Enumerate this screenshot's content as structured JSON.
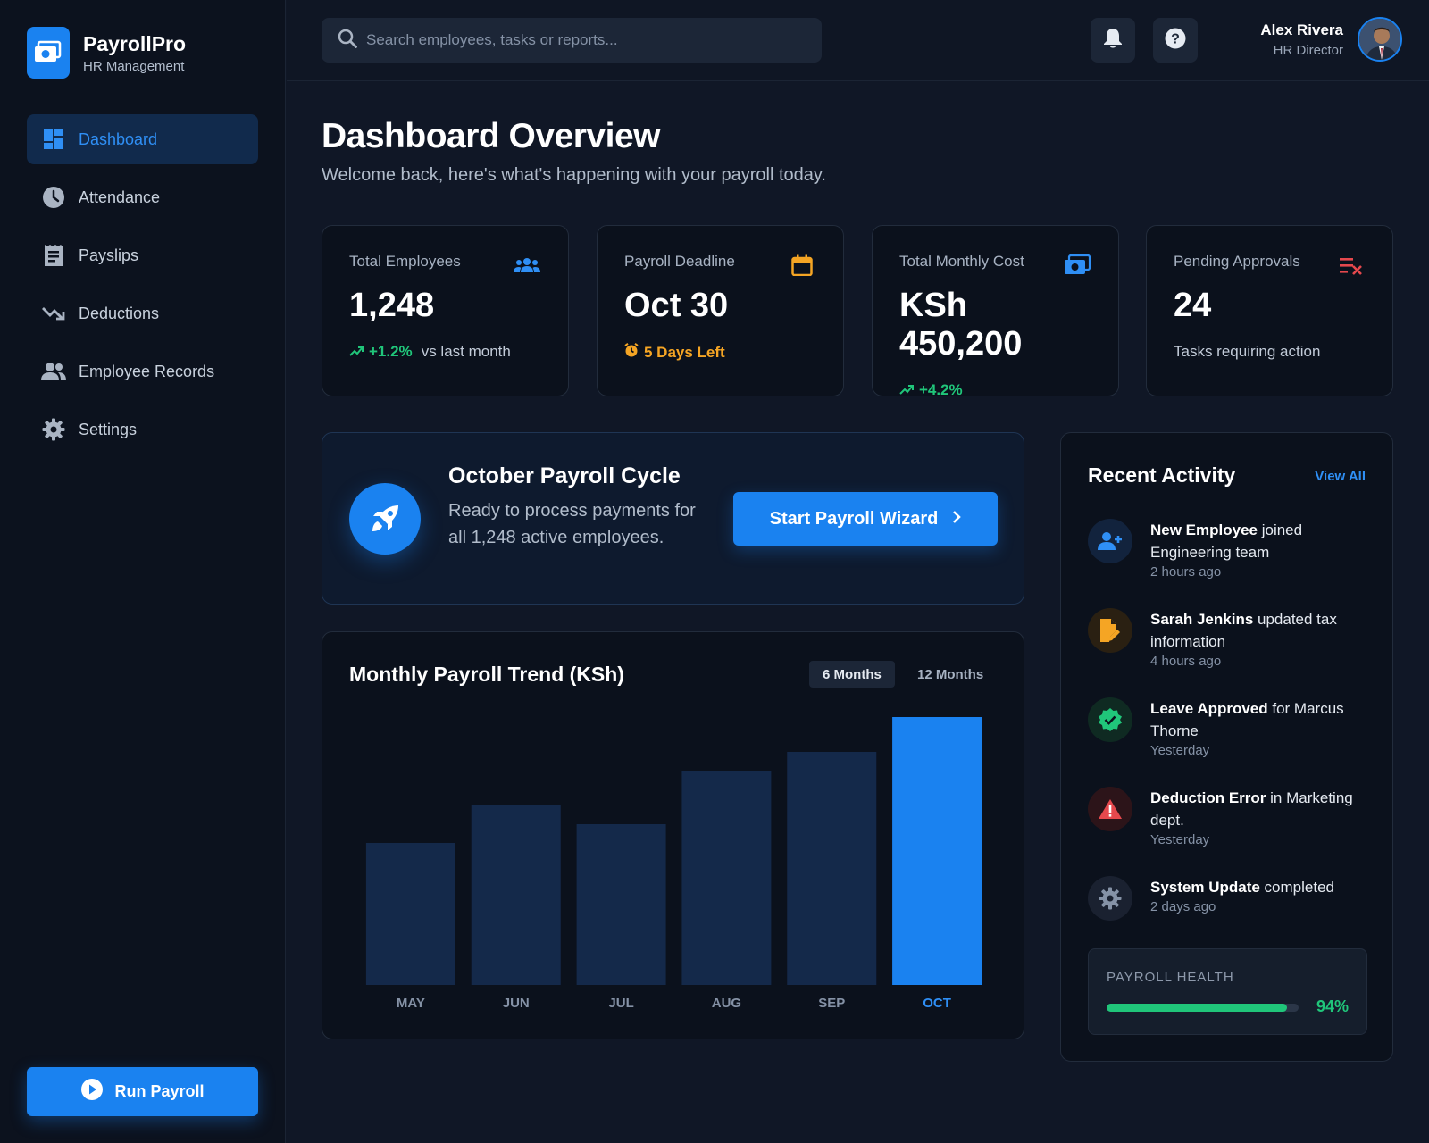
{
  "brand": {
    "name": "PayrollPro",
    "subtitle": "HR Management",
    "icon": "money-icon"
  },
  "sidebar": {
    "items": [
      {
        "label": "Dashboard",
        "icon": "dashboard-icon",
        "active": true
      },
      {
        "label": "Attendance",
        "icon": "clock-icon",
        "active": false
      },
      {
        "label": "Payslips",
        "icon": "receipt-icon",
        "active": false
      },
      {
        "label": "Deductions",
        "icon": "trending-down-icon",
        "active": false
      },
      {
        "label": "Employee Records",
        "icon": "people-icon",
        "active": false
      },
      {
        "label": "Settings",
        "icon": "gear-icon",
        "active": false
      }
    ],
    "run_payroll_label": "Run Payroll"
  },
  "header": {
    "search_placeholder": "Search employees, tasks or reports...",
    "user_name": "Alex Rivera",
    "user_role": "HR Director"
  },
  "main": {
    "title": "Dashboard Overview",
    "subtitle": "Welcome back, here's what's happening with your payroll today."
  },
  "stats": [
    {
      "label": "Total Employees",
      "value": "1,248",
      "trend": "+1.2%",
      "note": "vs last month",
      "icon": "people-icon"
    },
    {
      "label": "Payroll Deadline",
      "value": "Oct 30",
      "note": "5 Days Left",
      "icon": "calendar-icon"
    },
    {
      "label": "Total Monthly Cost",
      "value": "KSh 450,200",
      "trend": "+4.2%",
      "icon": "money-icon"
    },
    {
      "label": "Pending Approvals",
      "value": "24",
      "note": "Tasks requiring action",
      "icon": "checklist-x-icon"
    }
  ],
  "cycle": {
    "title": "October Payroll Cycle",
    "description": "Ready to process payments for all 1,248 active employees.",
    "button_label": "Start Payroll Wizard"
  },
  "chart": {
    "title": "Monthly Payroll Trend (KSh)",
    "toggle_active": "6 Months",
    "toggle_inactive": "12 Months"
  },
  "chart_data": {
    "type": "bar",
    "title": "Monthly Payroll Trend (KSh)",
    "categories": [
      "MAY",
      "JUN",
      "JUL",
      "AUG",
      "SEP",
      "OCT"
    ],
    "values": [
      53,
      67,
      60,
      80,
      87,
      100
    ],
    "highlight": "OCT",
    "ylim": [
      0,
      100
    ],
    "grid": false,
    "colors": {
      "bar": "#14294a",
      "highlight": "#1a82f0"
    }
  },
  "activity": {
    "title": "Recent Activity",
    "view_all": "View All",
    "items": [
      {
        "bold": "New Employee",
        "rest": " joined Engineering team",
        "time": "2 hours ago",
        "icon": "user-plus-icon"
      },
      {
        "bold": "Sarah Jenkins",
        "rest": " updated tax information",
        "time": "4 hours ago",
        "icon": "edit-document-icon"
      },
      {
        "bold": "Leave Approved",
        "rest": " for Marcus Thorne",
        "time": "Yesterday",
        "icon": "verified-check-icon"
      },
      {
        "bold": "Deduction Error",
        "rest": " in Marketing dept.",
        "time": "Yesterday",
        "icon": "warning-icon"
      },
      {
        "bold": "System Update",
        "rest": " completed",
        "time": "2 days ago",
        "icon": "gear-icon"
      }
    ]
  },
  "health": {
    "label": "PAYROLL HEALTH",
    "value": "94%",
    "fraction": 0.94
  },
  "colors": {
    "accent": "#1a82f0",
    "success": "#20c67a",
    "warning": "#f5a524",
    "danger": "#e5484d"
  }
}
